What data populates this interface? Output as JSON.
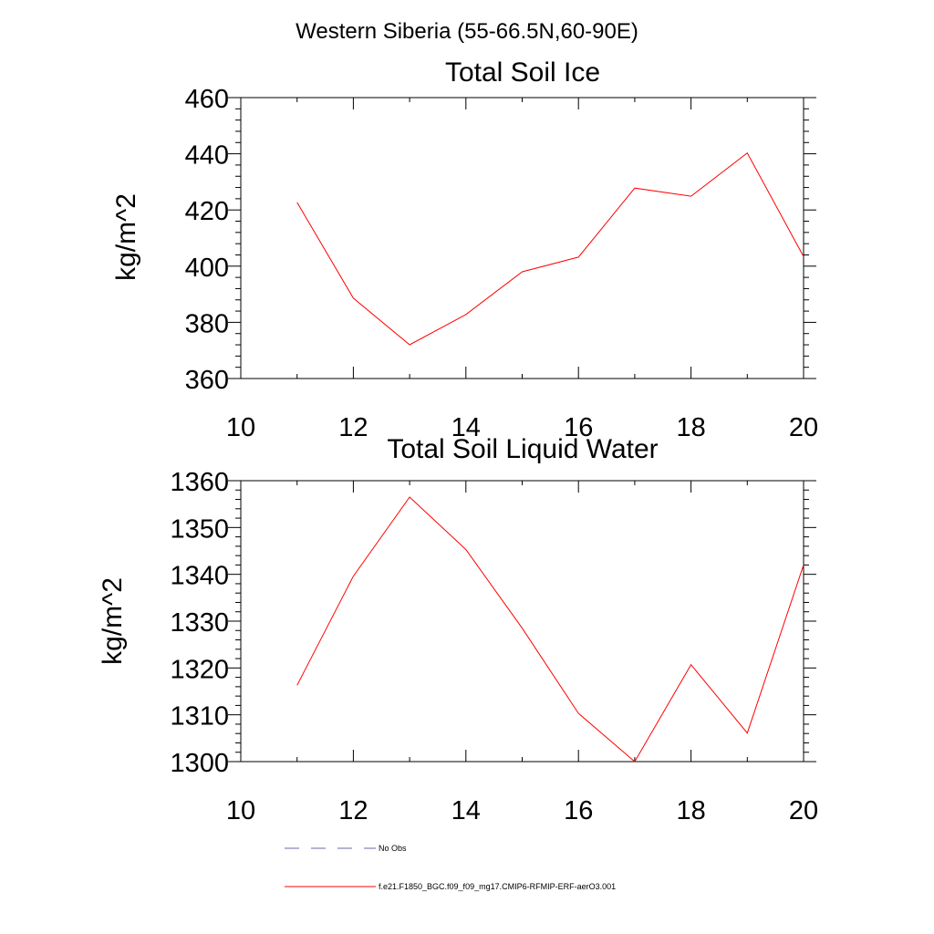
{
  "figure": {
    "suptitle": "Western Siberia (55-66.5N,60-90E)"
  },
  "chart_data": [
    {
      "type": "line",
      "title": "Total Soil Ice",
      "xlabel": "",
      "ylabel": "kg/m^2",
      "xlim": [
        10,
        20
      ],
      "ylim": [
        360,
        460
      ],
      "x_ticks": [
        10,
        12,
        14,
        16,
        18,
        20
      ],
      "y_ticks": [
        360,
        380,
        400,
        420,
        440,
        460
      ],
      "x_minor_step": 1,
      "y_minor_step": 4,
      "grid": false,
      "series": [
        {
          "name": "f.e21.F1850_BGC.f09_f09_mg17.CMIP6-RFMIP-ERF-aerO3.001",
          "color": "#ff0000",
          "x": [
            11,
            12,
            13,
            14,
            15,
            16,
            17,
            18,
            19,
            20
          ],
          "y": [
            422.7,
            388.6,
            372.0,
            382.8,
            398.0,
            403.2,
            427.8,
            424.9,
            440.3,
            403.4
          ]
        }
      ]
    },
    {
      "type": "line",
      "title": "Total Soil Liquid Water",
      "xlabel": "",
      "ylabel": "kg/m^2",
      "xlim": [
        10,
        20
      ],
      "ylim": [
        1300,
        1360
      ],
      "x_ticks": [
        10,
        12,
        14,
        16,
        18,
        20
      ],
      "y_ticks": [
        1300,
        1310,
        1320,
        1330,
        1340,
        1350,
        1360
      ],
      "x_minor_step": 1,
      "y_minor_step": 2,
      "grid": false,
      "series": [
        {
          "name": "f.e21.F1850_BGC.f09_f09_mg17.CMIP6-RFMIP-ERF-aerO3.001",
          "color": "#ff0000",
          "x": [
            11,
            12,
            13,
            14,
            15,
            16,
            17,
            18,
            19,
            20
          ],
          "y": [
            1316.3,
            1339.6,
            1356.5,
            1345.3,
            1328.5,
            1310.3,
            1300.0,
            1320.7,
            1306.1,
            1342.0
          ]
        }
      ]
    }
  ],
  "legend": {
    "placement": "bottom-left",
    "entries": [
      {
        "label": "No Obs",
        "color": "#6a6aa8",
        "style": "dashed"
      },
      {
        "label": "f.e21.F1850_BGC.f09_f09_mg17.CMIP6-RFMIP-ERF-aerO3.001",
        "color": "#ff0000",
        "style": "solid"
      }
    ]
  }
}
